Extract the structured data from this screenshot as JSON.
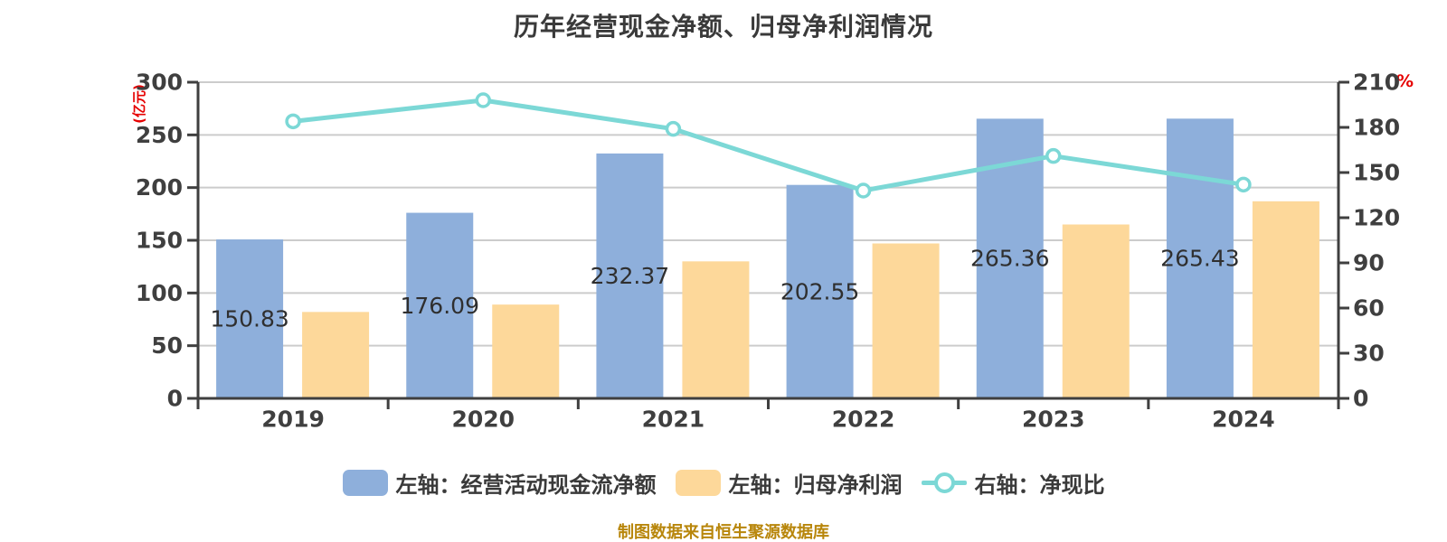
{
  "title": "历年经营现金净额、归母净利润情况",
  "chart_data": {
    "type": "bar+line",
    "categories": [
      "2019",
      "2020",
      "2021",
      "2022",
      "2023",
      "2024"
    ],
    "series": [
      {
        "name": "左轴：经营活动现金流净额",
        "type": "bar",
        "axis": "left",
        "color": "#8eafdb",
        "values": [
          150.83,
          176.09,
          232.37,
          202.55,
          265.36,
          265.43
        ],
        "labels": [
          "150.83",
          "176.09",
          "232.37",
          "202.55",
          "265.36",
          "265.43"
        ]
      },
      {
        "name": "左轴：归母净利润",
        "type": "bar",
        "axis": "left",
        "color": "#fdd89a",
        "values": [
          82,
          89,
          130,
          147,
          165,
          187
        ],
        "labels": []
      },
      {
        "name": "右轴：净现比",
        "type": "line",
        "axis": "right",
        "color": "#7cd8d6",
        "marker_fill": "#ffffff",
        "values": [
          184,
          198,
          179,
          138,
          161,
          142
        ]
      }
    ],
    "left_axis": {
      "name": "(亿元)",
      "min": 0,
      "max": 300,
      "step": 50,
      "ticks": [
        "0",
        "50",
        "100",
        "150",
        "200",
        "250",
        "300"
      ]
    },
    "right_axis": {
      "name": "%",
      "min": 0,
      "max": 210,
      "step": 30,
      "ticks": [
        "0",
        "30",
        "60",
        "90",
        "120",
        "150",
        "180",
        "210"
      ]
    },
    "grid": true,
    "legend_position": "bottom",
    "colors": {
      "axis_line": "#3f3f3f",
      "gridline": "#cccccc",
      "tick_label": "#3f3f3f",
      "value_label": "#2f2f2f",
      "axis_name": "#e60000"
    }
  },
  "legend": {
    "items": [
      {
        "label": "左轴：经营活动现金流净额",
        "swatch": "bar",
        "color": "#8eafdb"
      },
      {
        "label": "左轴：归母净利润",
        "swatch": "bar",
        "color": "#fdd89a"
      },
      {
        "label": "右轴：净现比",
        "swatch": "line-marker",
        "color": "#7cd8d6"
      }
    ]
  },
  "footer": {
    "text": "制图数据来自恒生聚源数据库",
    "color": "#b8860b"
  }
}
